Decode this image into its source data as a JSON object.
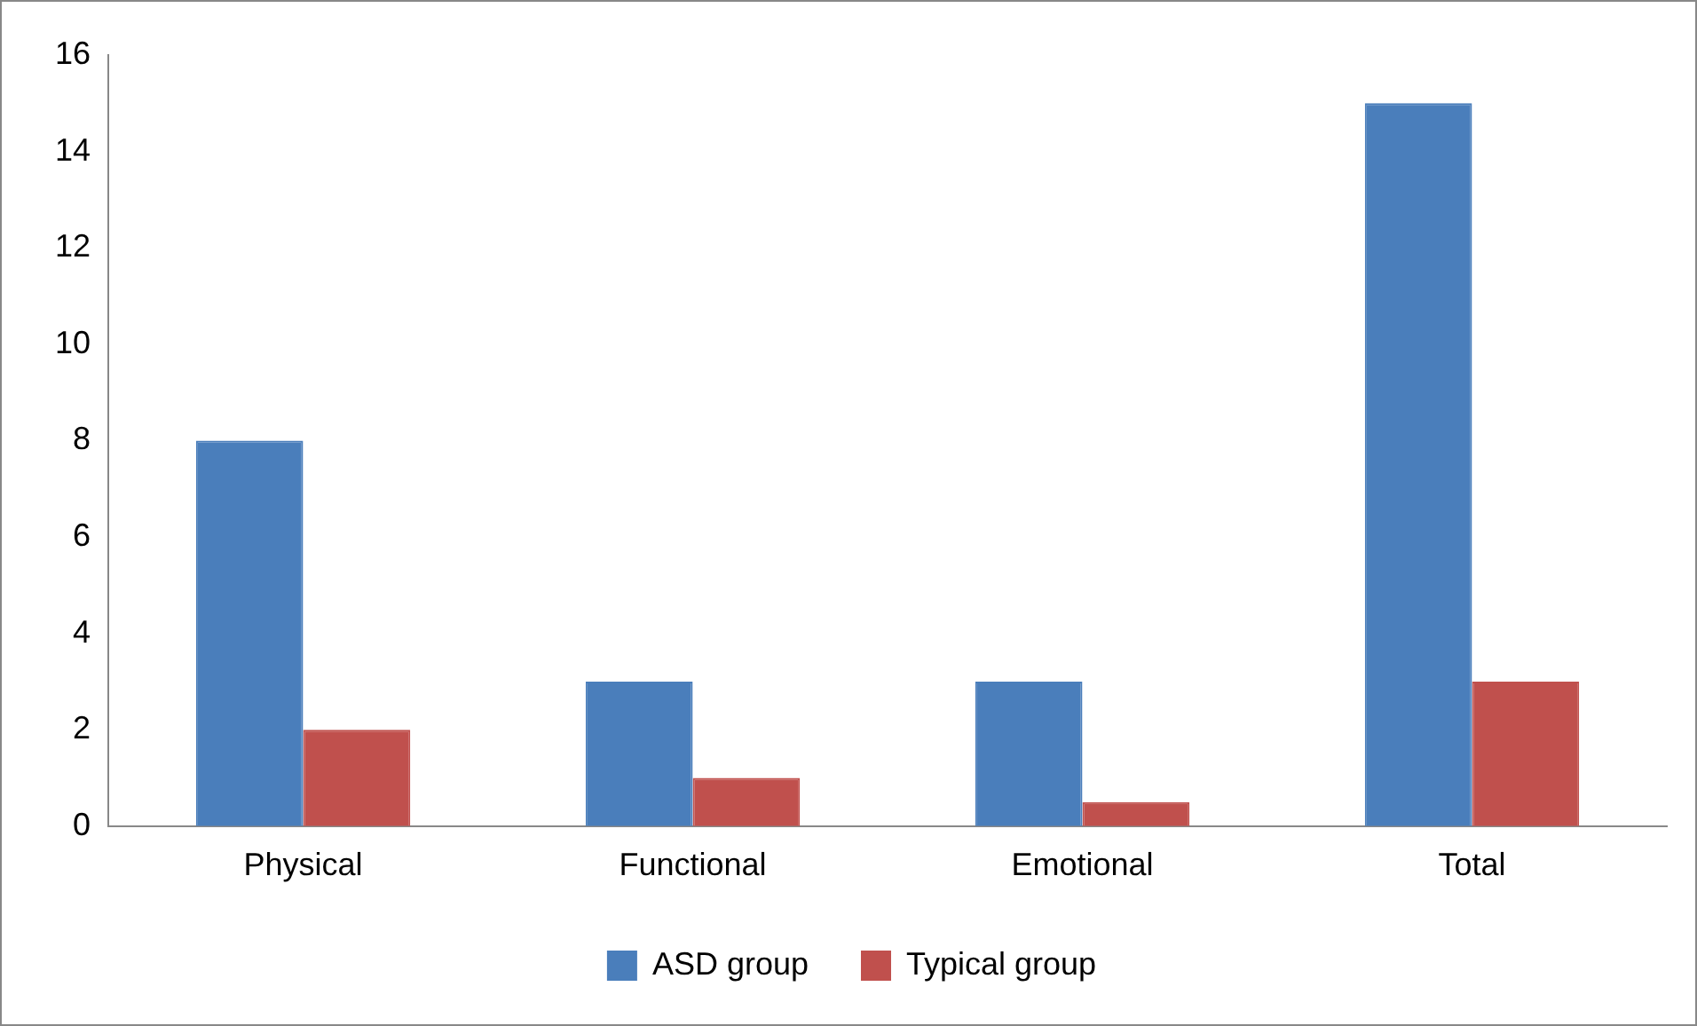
{
  "chart_data": {
    "type": "bar",
    "categories": [
      "Physical",
      "Functional",
      "Emotional",
      "Total"
    ],
    "series": [
      {
        "name": "ASD group",
        "color": "#4a7ebb",
        "values": [
          8,
          3,
          3,
          15
        ]
      },
      {
        "name": "Typical group",
        "color": "#c0504d",
        "values": [
          2,
          1,
          0.5,
          3
        ]
      }
    ],
    "ylim": [
      0,
      16
    ],
    "yticks": [
      0,
      2,
      4,
      6,
      8,
      10,
      12,
      14,
      16
    ],
    "grid": false,
    "legend": "bottom"
  }
}
